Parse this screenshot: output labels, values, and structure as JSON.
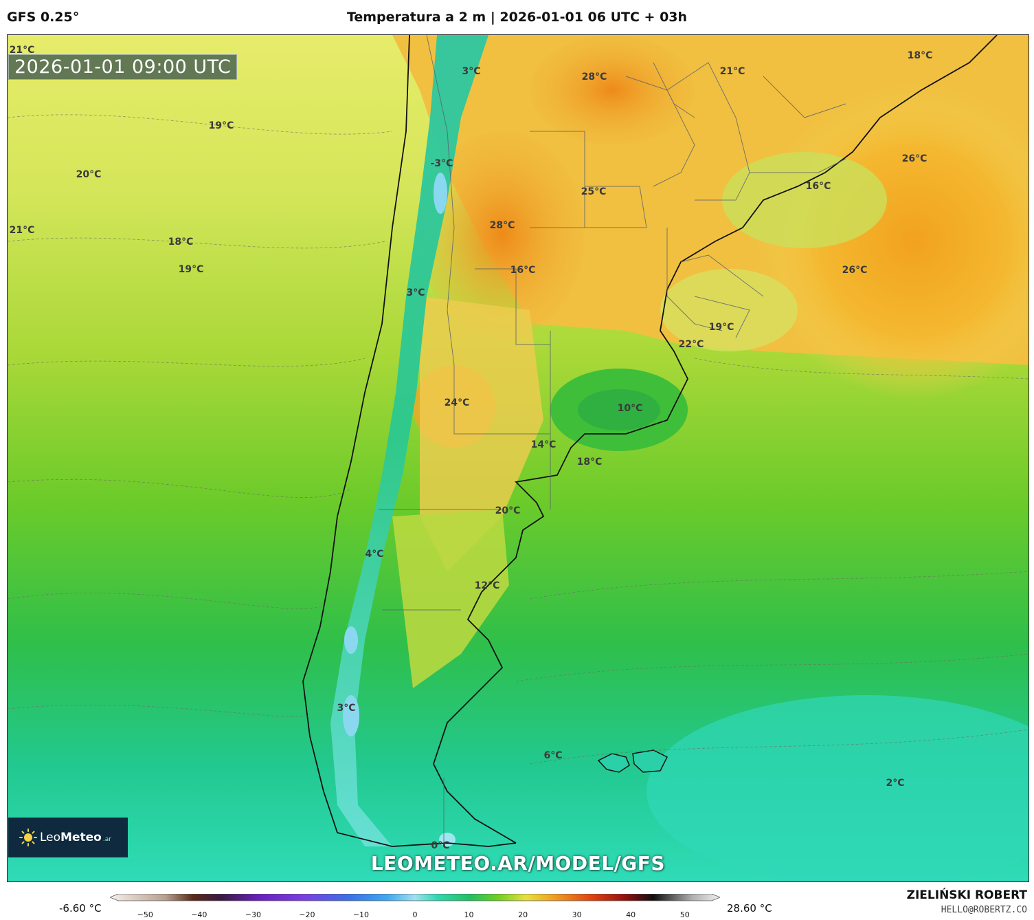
{
  "header": {
    "model": "GFS 0.25°",
    "title": "Temperatura a 2 m | 2026-01-01 06 UTC + 03h"
  },
  "map": {
    "valid_time": "2026-01-01 09:00 UTC",
    "temperature_labels": [
      {
        "text": "21°C"
      },
      {
        "text": "3°C"
      },
      {
        "text": "28°C"
      },
      {
        "text": "21°C"
      },
      {
        "text": "18°C"
      },
      {
        "text": "19°C"
      },
      {
        "text": "20°C"
      },
      {
        "text": "-3°C"
      },
      {
        "text": "26°C"
      },
      {
        "text": "25°C"
      },
      {
        "text": "16°C"
      },
      {
        "text": "21°C"
      },
      {
        "text": "18°C"
      },
      {
        "text": "28°C"
      },
      {
        "text": "19°C"
      },
      {
        "text": "16°C"
      },
      {
        "text": "26°C"
      },
      {
        "text": "3°C"
      },
      {
        "text": "19°C"
      },
      {
        "text": "22°C"
      },
      {
        "text": "24°C"
      },
      {
        "text": "10°C"
      },
      {
        "text": "14°C"
      },
      {
        "text": "18°C"
      },
      {
        "text": "20°C"
      },
      {
        "text": "4°C"
      },
      {
        "text": "12°C"
      },
      {
        "text": "3°C"
      },
      {
        "text": "6°C"
      },
      {
        "text": "2°C"
      },
      {
        "text": "0°C"
      }
    ],
    "watermark_url": "LEOMETEO.AR/MODEL/GFS",
    "logo": {
      "name_regular": "Leo",
      "name_bold": "Meteo",
      "suffix": ".ar"
    }
  },
  "legend": {
    "min_label": "-6.60 °C",
    "max_label": "28.60 °C",
    "ticks": [
      "−50",
      "−40",
      "−30",
      "−20",
      "−10",
      "0",
      "10",
      "20",
      "30",
      "40",
      "50"
    ],
    "range": [
      -55,
      55
    ],
    "color_stops": [
      {
        "value": -55,
        "color": "#f5f0ea"
      },
      {
        "value": -45,
        "color": "#b8a090"
      },
      {
        "value": -40,
        "color": "#5a2a18"
      },
      {
        "value": -35,
        "color": "#3a1a40"
      },
      {
        "value": -28,
        "color": "#6a20c0"
      },
      {
        "value": -20,
        "color": "#7a40e0"
      },
      {
        "value": -12,
        "color": "#3a70e8"
      },
      {
        "value": -5,
        "color": "#40a8f0"
      },
      {
        "value": 0,
        "color": "#a0e0f0"
      },
      {
        "value": 4,
        "color": "#30d8b0"
      },
      {
        "value": 10,
        "color": "#20c060"
      },
      {
        "value": 15,
        "color": "#70d020"
      },
      {
        "value": 20,
        "color": "#e8e040"
      },
      {
        "value": 25,
        "color": "#f0a020"
      },
      {
        "value": 32,
        "color": "#e04010"
      },
      {
        "value": 38,
        "color": "#901010"
      },
      {
        "value": 43,
        "color": "#101010"
      },
      {
        "value": 50,
        "color": "#b0b0b0"
      },
      {
        "value": 55,
        "color": "#f0f0f0"
      }
    ]
  },
  "author": {
    "name": "ZIELIŃSKI ROBERT",
    "email": "HELLO@ROBERTZ.CO"
  }
}
